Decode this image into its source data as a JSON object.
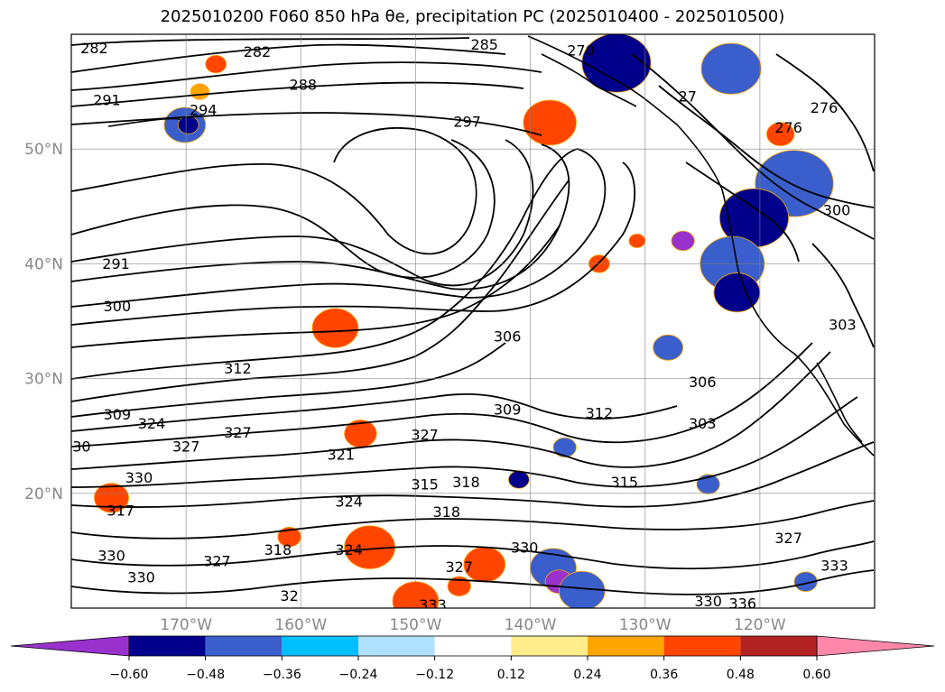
{
  "title": "2025010200 F060 850 hPa θe, precipitation PC (2025010400 - 2025010500)",
  "chart_data": {
    "type": "contour-map",
    "title": "2025010200 F060 850 hPa θe, precipitation PC (2025010400 - 2025010500)",
    "lon_range": [
      -180,
      -110
    ],
    "lat_range": [
      10,
      60
    ],
    "xticks": [
      -170,
      -160,
      -150,
      -140,
      -130,
      -120
    ],
    "xtick_labels": [
      "170°W",
      "160°W",
      "150°W",
      "140°W",
      "130°W",
      "120°W"
    ],
    "yticks": [
      20,
      30,
      40,
      50
    ],
    "ytick_labels": [
      "20°N",
      "30°N",
      "40°N",
      "50°N"
    ],
    "grid": true,
    "contour_labels": [
      {
        "text": "282",
        "lon": -178,
        "lat": 58.7
      },
      {
        "text": "282",
        "lon": -163.8,
        "lat": 58.4
      },
      {
        "text": "285",
        "lon": -144,
        "lat": 59.0
      },
      {
        "text": "288",
        "lon": -159.8,
        "lat": 55.5
      },
      {
        "text": "291",
        "lon": -176.9,
        "lat": 54.2
      },
      {
        "text": "294",
        "lon": -168.5,
        "lat": 53.3
      },
      {
        "text": "297",
        "lon": -145.5,
        "lat": 52.3
      },
      {
        "text": "270",
        "lon": -135.6,
        "lat": 58.5
      },
      {
        "text": "27",
        "lon": -126.3,
        "lat": 54.5
      },
      {
        "text": "276",
        "lon": -114.4,
        "lat": 53.5
      },
      {
        "text": "276",
        "lon": -117.5,
        "lat": 51.8
      },
      {
        "text": "300",
        "lon": -113.3,
        "lat": 44.6
      },
      {
        "text": "291",
        "lon": -176.1,
        "lat": 39.9
      },
      {
        "text": "300",
        "lon": -176.0,
        "lat": 36.2
      },
      {
        "text": "306",
        "lon": -142.0,
        "lat": 33.6
      },
      {
        "text": "303",
        "lon": -112.8,
        "lat": 34.6
      },
      {
        "text": "312",
        "lon": -165.5,
        "lat": 30.8
      },
      {
        "text": "306",
        "lon": -125.0,
        "lat": 29.6
      },
      {
        "text": "309",
        "lon": -176.0,
        "lat": 26.8
      },
      {
        "text": "324",
        "lon": -173.0,
        "lat": 26.0
      },
      {
        "text": "309",
        "lon": -142.0,
        "lat": 27.2
      },
      {
        "text": "312",
        "lon": -134.0,
        "lat": 26.9
      },
      {
        "text": "303",
        "lon": -125.0,
        "lat": 26.0
      },
      {
        "text": "30",
        "lon": -179.1,
        "lat": 24.0
      },
      {
        "text": "327",
        "lon": -165.5,
        "lat": 25.2
      },
      {
        "text": "327",
        "lon": -170.0,
        "lat": 24.0
      },
      {
        "text": "321",
        "lon": -156.5,
        "lat": 23.3
      },
      {
        "text": "327",
        "lon": -149.2,
        "lat": 25.0
      },
      {
        "text": "330",
        "lon": -174.1,
        "lat": 21.3
      },
      {
        "text": "315",
        "lon": -149.2,
        "lat": 20.7
      },
      {
        "text": "318",
        "lon": -145.6,
        "lat": 20.9
      },
      {
        "text": "315",
        "lon": -131.8,
        "lat": 20.9
      },
      {
        "text": "324",
        "lon": -155.8,
        "lat": 19.2
      },
      {
        "text": "318",
        "lon": -147.3,
        "lat": 18.3
      },
      {
        "text": "317",
        "lon": -175.7,
        "lat": 18.4
      },
      {
        "text": "330",
        "lon": -176.5,
        "lat": 14.5
      },
      {
        "text": "324",
        "lon": -155.8,
        "lat": 15.0
      },
      {
        "text": "318",
        "lon": -162.0,
        "lat": 15.0
      },
      {
        "text": "327",
        "lon": -167.3,
        "lat": 14.0
      },
      {
        "text": "327",
        "lon": -146.2,
        "lat": 13.5
      },
      {
        "text": "330",
        "lon": -140.5,
        "lat": 15.2
      },
      {
        "text": "330",
        "lon": -173.9,
        "lat": 12.6
      },
      {
        "text": "32",
        "lon": -161.0,
        "lat": 11.0
      },
      {
        "text": "333",
        "lon": -148.5,
        "lat": 10.2
      },
      {
        "text": "330",
        "lon": -124.5,
        "lat": 10.5
      },
      {
        "text": "336",
        "lon": -121.5,
        "lat": 10.3
      },
      {
        "text": "327",
        "lon": -117.5,
        "lat": 16.0
      },
      {
        "text": "333",
        "lon": -113.5,
        "lat": 13.6
      }
    ],
    "colorbar": {
      "levels": [
        -0.6,
        -0.48,
        -0.36,
        -0.24,
        -0.12,
        0.12,
        0.24,
        0.36,
        0.48,
        0.6
      ],
      "tick_labels": [
        "−0.60",
        "−0.48",
        "−0.36",
        "−0.24",
        "−0.12",
        "0.12",
        "0.24",
        "0.36",
        "0.48",
        "0.60"
      ],
      "colors": [
        "#9932cc",
        "#00008b",
        "#3a5fcd",
        "#00bfff",
        "#b0e2ff",
        "#ffffff",
        "#ffec8b",
        "#ffa500",
        "#ff4500",
        "#b22222",
        "#ff88aa"
      ],
      "extend": "both"
    },
    "precip_blobs": [
      {
        "lon": -167.4,
        "lat": 57.4,
        "r": 0.9,
        "color": "#ff4500"
      },
      {
        "lon": -168.8,
        "lat": 55.0,
        "r": 0.8,
        "color": "#ffa500"
      },
      {
        "lon": -170.1,
        "lat": 52.1,
        "r": 1.8,
        "color": "#3a5fcd"
      },
      {
        "lon": -169.8,
        "lat": 52.1,
        "r": 0.9,
        "color": "#00008b"
      },
      {
        "lon": -138.5,
        "lat": 52.3,
        "r": 1.6,
        "color": "#b22222"
      },
      {
        "lon": -138.3,
        "lat": 52.3,
        "r": 2.3,
        "color": "#ff4500"
      },
      {
        "lon": -132.5,
        "lat": 57.5,
        "r": 3.0,
        "color": "#00008b"
      },
      {
        "lon": -122.5,
        "lat": 57.0,
        "r": 2.6,
        "color": "#3a5fcd"
      },
      {
        "lon": -118.2,
        "lat": 51.3,
        "r": 1.2,
        "color": "#ff4500"
      },
      {
        "lon": -117.0,
        "lat": 47.0,
        "r": 3.4,
        "color": "#3a5fcd"
      },
      {
        "lon": -120.5,
        "lat": 44.0,
        "r": 3.0,
        "color": "#00008b"
      },
      {
        "lon": -122.4,
        "lat": 40.0,
        "r": 2.8,
        "color": "#3a5fcd"
      },
      {
        "lon": -122.0,
        "lat": 37.5,
        "r": 2.0,
        "color": "#00008b"
      },
      {
        "lon": -128.0,
        "lat": 32.7,
        "r": 1.3,
        "color": "#3a5fcd"
      },
      {
        "lon": -157.0,
        "lat": 34.4,
        "r": 2.0,
        "color": "#ff4500"
      },
      {
        "lon": -130.7,
        "lat": 42.0,
        "r": 0.7,
        "color": "#ff4500"
      },
      {
        "lon": -134.0,
        "lat": 40.0,
        "r": 0.9,
        "color": "#ff4500"
      },
      {
        "lon": -154.8,
        "lat": 25.2,
        "r": 1.4,
        "color": "#ff4500"
      },
      {
        "lon": -176.5,
        "lat": 19.6,
        "r": 1.5,
        "color": "#ff4500"
      },
      {
        "lon": -161.0,
        "lat": 16.2,
        "r": 1.0,
        "color": "#ff4500"
      },
      {
        "lon": -154.0,
        "lat": 15.3,
        "r": 2.2,
        "color": "#ff4500"
      },
      {
        "lon": -144.0,
        "lat": 13.8,
        "r": 1.8,
        "color": "#ff4500"
      },
      {
        "lon": -146.2,
        "lat": 11.9,
        "r": 1.0,
        "color": "#ff4500"
      },
      {
        "lon": -150.0,
        "lat": 10.6,
        "r": 2.0,
        "color": "#ff4500"
      },
      {
        "lon": -138.0,
        "lat": 13.5,
        "r": 2.0,
        "color": "#3a5fcd"
      },
      {
        "lon": -137.5,
        "lat": 12.3,
        "r": 1.2,
        "color": "#9932cc"
      },
      {
        "lon": -135.5,
        "lat": 11.5,
        "r": 2.0,
        "color": "#3a5fcd"
      },
      {
        "lon": -116.0,
        "lat": 12.3,
        "r": 1.0,
        "color": "#3a5fcd"
      },
      {
        "lon": -141.0,
        "lat": 21.2,
        "r": 0.9,
        "color": "#00008b"
      },
      {
        "lon": -137.0,
        "lat": 24.0,
        "r": 1.0,
        "color": "#3a5fcd"
      },
      {
        "lon": -124.5,
        "lat": 20.8,
        "r": 1.0,
        "color": "#3a5fcd"
      },
      {
        "lon": -126.7,
        "lat": 42.0,
        "r": 1.0,
        "color": "#9932cc"
      }
    ]
  }
}
